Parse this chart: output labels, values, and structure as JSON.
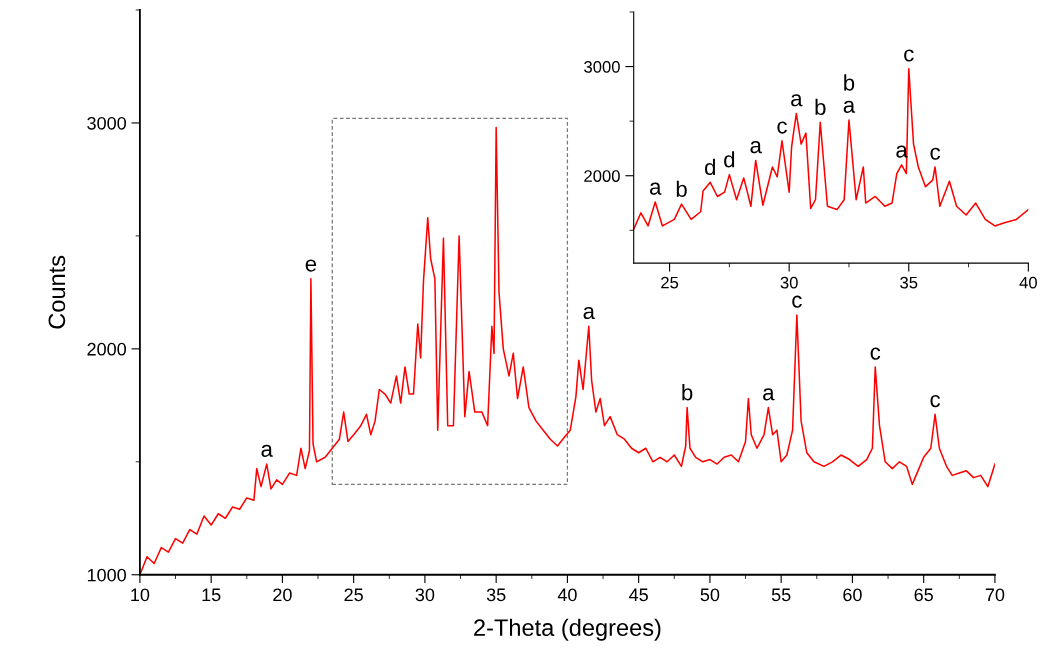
{
  "chart_data": [
    {
      "type": "line",
      "xlabel": "2-Theta (degrees)",
      "ylabel": "Counts",
      "xlim": [
        10,
        70
      ],
      "ylim": [
        1000,
        3500
      ],
      "xticks": [
        10,
        15,
        20,
        25,
        30,
        35,
        40,
        45,
        50,
        55,
        60,
        65,
        70
      ],
      "yticks": [
        1000,
        2000,
        3000
      ],
      "grid": false,
      "x": [
        10,
        10.5,
        11,
        11.5,
        12,
        12.5,
        13,
        13.5,
        14,
        14.5,
        15,
        15.5,
        16,
        16.5,
        17,
        17.5,
        18,
        18.2,
        18.5,
        18.9,
        19.2,
        19.6,
        20,
        20.5,
        21,
        21.3,
        21.6,
        21.9,
        22.0,
        22.15,
        22.4,
        23,
        23.5,
        24,
        24.3,
        24.6,
        25,
        25.5,
        25.9,
        26.2,
        26.5,
        26.8,
        27.2,
        27.6,
        28,
        28.3,
        28.6,
        28.9,
        29.2,
        29.5,
        29.7,
        29.9,
        30.2,
        30.4,
        30.7,
        30.9,
        31.3,
        31.6,
        32,
        32.4,
        32.8,
        33.1,
        33.5,
        34,
        34.4,
        34.7,
        34.85,
        35.0,
        35.2,
        35.5,
        35.9,
        36.2,
        36.5,
        36.9,
        37.3,
        37.8,
        38.3,
        38.8,
        39.3,
        39.8,
        40.2,
        40.6,
        40.8,
        41.1,
        41.5,
        41.7,
        42.0,
        42.3,
        42.6,
        43,
        43.5,
        44,
        44.5,
        45,
        45.5,
        46,
        46.5,
        47,
        47.5,
        48.0,
        48.3,
        48.4,
        48.6,
        49,
        49.5,
        50,
        50.5,
        51,
        51.5,
        52,
        52.5,
        52.7,
        52.9,
        53.3,
        53.8,
        54.1,
        54.4,
        54.7,
        55.0,
        55.4,
        55.8,
        56.1,
        56.4,
        56.8,
        57.3,
        58,
        58.6,
        59.2,
        59.8,
        60.4,
        61,
        61.4,
        61.6,
        61.9,
        62.3,
        62.8,
        63.3,
        63.8,
        64.2,
        64.6,
        65,
        65.5,
        65.8,
        66.1,
        66.6,
        67,
        67.5,
        68,
        68.5,
        69,
        69.5,
        70
      ],
      "series": [
        {
          "color": "#ff0000",
          "values": [
            1000,
            1080,
            1050,
            1120,
            1100,
            1160,
            1140,
            1200,
            1180,
            1260,
            1220,
            1270,
            1250,
            1300,
            1290,
            1340,
            1330,
            1470,
            1390,
            1490,
            1380,
            1420,
            1400,
            1450,
            1440,
            1560,
            1470,
            1550,
            2310,
            1580,
            1500,
            1520,
            1560,
            1600,
            1720,
            1590,
            1620,
            1660,
            1710,
            1620,
            1680,
            1820,
            1800,
            1760,
            1880,
            1760,
            1920,
            1800,
            1800,
            2110,
            1960,
            2300,
            2580,
            2400,
            2310,
            1640,
            2490,
            1660,
            1660,
            2500,
            1700,
            1900,
            1720,
            1720,
            1660,
            2100,
            1980,
            2980,
            2250,
            2000,
            1880,
            1980,
            1780,
            1920,
            1740,
            1680,
            1640,
            1600,
            1570,
            1610,
            1640,
            1790,
            1950,
            1820,
            2100,
            1860,
            1720,
            1780,
            1660,
            1700,
            1620,
            1600,
            1560,
            1540,
            1560,
            1500,
            1520,
            1500,
            1530,
            1480,
            1570,
            1740,
            1560,
            1520,
            1500,
            1510,
            1490,
            1520,
            1530,
            1500,
            1590,
            1780,
            1620,
            1560,
            1620,
            1740,
            1620,
            1640,
            1500,
            1530,
            1640,
            2150,
            1680,
            1540,
            1500,
            1480,
            1500,
            1530,
            1510,
            1480,
            1510,
            1560,
            1920,
            1660,
            1500,
            1470,
            1500,
            1480,
            1400,
            1460,
            1520,
            1560,
            1710,
            1560,
            1480,
            1440,
            1450,
            1460,
            1430,
            1440,
            1390,
            1490
          ]
        }
      ],
      "annotations": [
        {
          "text": "a",
          "x": 18.9,
          "y": 1490
        },
        {
          "text": "e",
          "x": 22.0,
          "y": 2310
        },
        {
          "text": "a",
          "x": 41.5,
          "y": 2100
        },
        {
          "text": "b",
          "x": 48.4,
          "y": 1740
        },
        {
          "text": "a",
          "x": 54.1,
          "y": 1740
        },
        {
          "text": "c",
          "x": 56.1,
          "y": 2150
        },
        {
          "text": "c",
          "x": 61.6,
          "y": 1920
        },
        {
          "text": "c",
          "x": 65.8,
          "y": 1710
        }
      ]
    },
    {
      "type": "line",
      "xlim": [
        23.5,
        40
      ],
      "ylim": [
        1200,
        3500
      ],
      "xticks": [
        25,
        30,
        35,
        40
      ],
      "yticks": [
        2000,
        3000
      ],
      "grid": false,
      "x": [
        23.5,
        23.8,
        24.1,
        24.4,
        24.7,
        25.2,
        25.5,
        25.9,
        26.3,
        26.4,
        26.7,
        27.0,
        27.3,
        27.5,
        27.8,
        28.1,
        28.4,
        28.6,
        28.9,
        29.3,
        29.5,
        29.7,
        30.0,
        30.1,
        30.2,
        30.3,
        30.5,
        30.7,
        30.9,
        31.1,
        31.3,
        31.6,
        32.0,
        32.3,
        32.5,
        32.8,
        33.1,
        33.2,
        33.6,
        34.0,
        34.3,
        34.5,
        34.7,
        34.9,
        35.0,
        35.2,
        35.4,
        35.7,
        36.0,
        36.1,
        36.3,
        36.7,
        37.0,
        37.4,
        37.8,
        38.2,
        38.6,
        39.0,
        39.5,
        40.0
      ],
      "series": [
        {
          "color": "#ff0000",
          "values": [
            1510,
            1660,
            1540,
            1760,
            1540,
            1600,
            1740,
            1600,
            1670,
            1860,
            1940,
            1810,
            1850,
            2010,
            1780,
            1980,
            1720,
            2140,
            1730,
            2080,
            1990,
            2320,
            1850,
            2260,
            2420,
            2570,
            2290,
            2390,
            1700,
            1780,
            2490,
            1720,
            1690,
            1780,
            2510,
            1780,
            2080,
            1750,
            1810,
            1720,
            1750,
            2020,
            2100,
            2020,
            2980,
            2290,
            2080,
            1900,
            1960,
            2080,
            1720,
            1950,
            1720,
            1640,
            1750,
            1600,
            1540,
            1570,
            1600,
            1690
          ]
        }
      ],
      "annotations": [
        {
          "text": "a",
          "x": 24.4,
          "y": 1760
        },
        {
          "text": "b",
          "x": 25.5,
          "y": 1740
        },
        {
          "text": "d",
          "x": 26.7,
          "y": 1940
        },
        {
          "text": "d",
          "x": 27.5,
          "y": 2010
        },
        {
          "text": "a",
          "x": 28.6,
          "y": 2140
        },
        {
          "text": "c",
          "x": 29.7,
          "y": 2320
        },
        {
          "text": "a",
          "x": 30.3,
          "y": 2570
        },
        {
          "text": "b",
          "x": 31.3,
          "y": 2490
        },
        {
          "text": "a",
          "x": 32.5,
          "y": 2510
        },
        {
          "text": "b",
          "x": 32.5,
          "y": 2510
        },
        {
          "text": "a",
          "x": 34.7,
          "y": 2100
        },
        {
          "text": "c",
          "x": 35.0,
          "y": 2980
        },
        {
          "text": "c",
          "x": 36.1,
          "y": 2080
        }
      ]
    }
  ]
}
